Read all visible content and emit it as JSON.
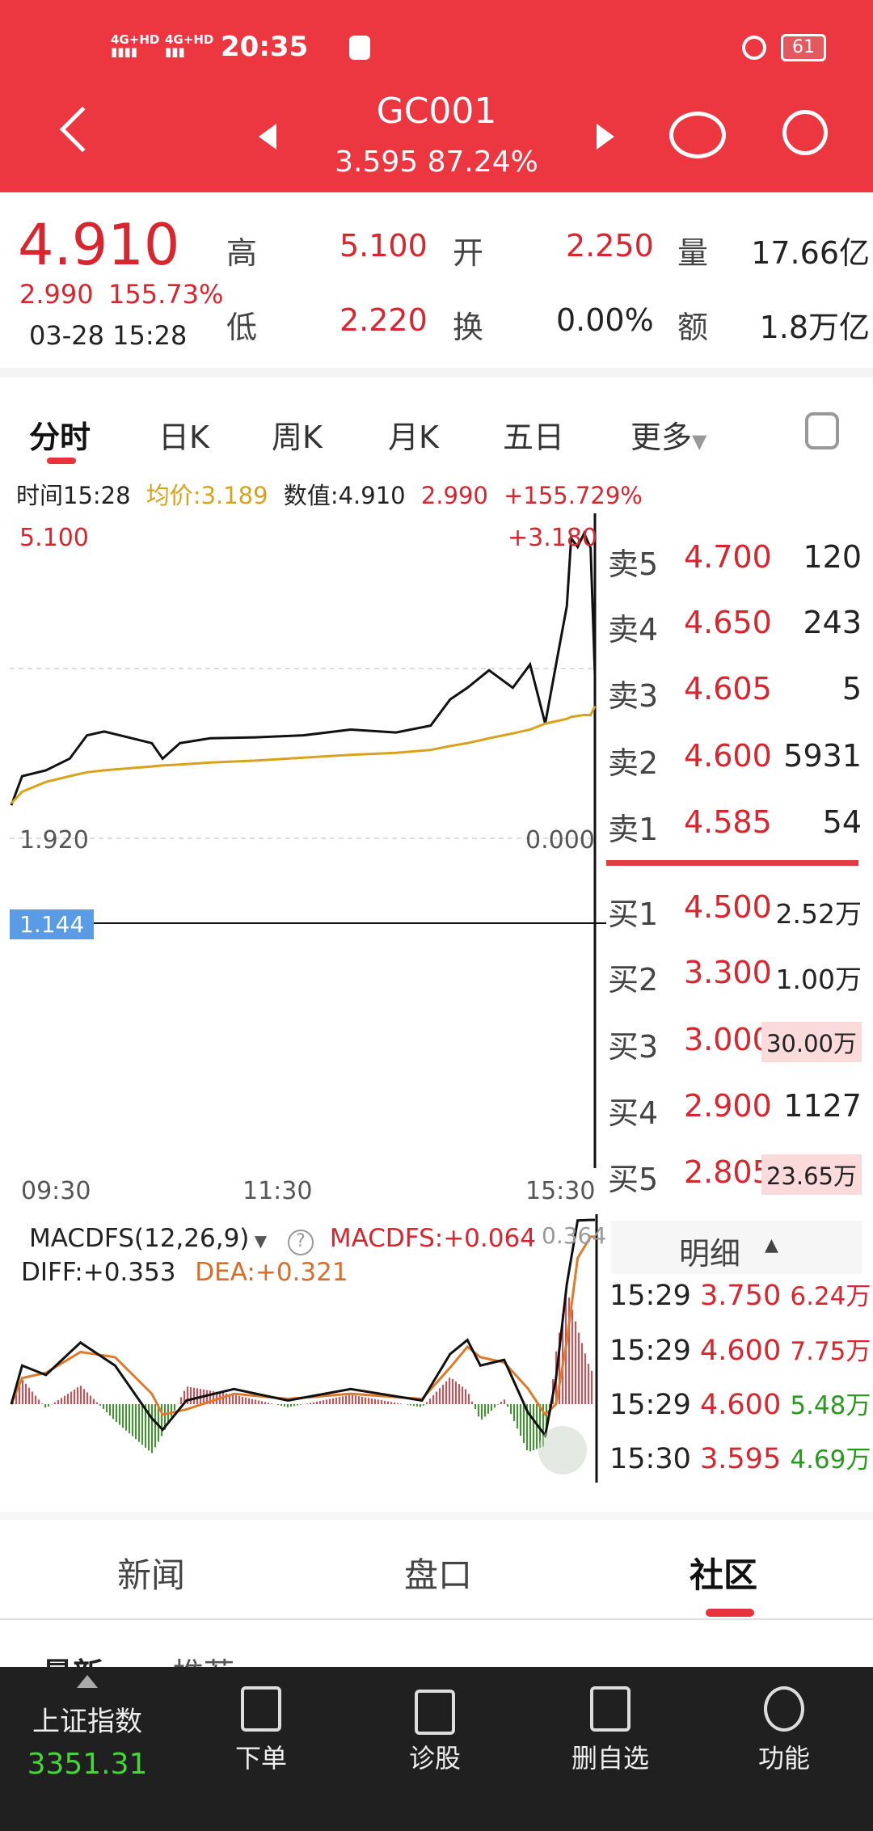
{
  "status_bar": {
    "time": "20:35",
    "network1": "4G+HD",
    "network2": "4G+HD",
    "battery": "61"
  },
  "header": {
    "title": "GC001",
    "subtitle": "3.595 87.24%",
    "back_icon": "chevron-left-icon",
    "prev_icon": "triangle-left-icon",
    "next_icon": "triangle-right-icon",
    "robot_icon": "robot-icon",
    "search_icon": "search-icon"
  },
  "quote": {
    "price": "4.910",
    "change": "2.990",
    "change_pct": "155.73%",
    "datetime": "03-28 15:28",
    "high_label": "高",
    "high": "5.100",
    "open_label": "开",
    "open": "2.250",
    "volume_label": "量",
    "volume": "17.66亿",
    "low_label": "低",
    "low": "2.220",
    "turnover_label": "换",
    "turnover": "0.00%",
    "amount_label": "额",
    "amount": "1.8万亿"
  },
  "tabs": {
    "items": [
      "分时",
      "日K",
      "周K",
      "月K",
      "五日",
      "更多"
    ],
    "active": 0,
    "settings_icon": "hexagon-settings-icon"
  },
  "info_line": {
    "time": "时间15:28",
    "avg": "均价:3.189",
    "value": "数值:4.910",
    "chg": "2.990",
    "pct": "+155.729%"
  },
  "chart_labels": {
    "top_left": "5.100",
    "top_right": "+3.180",
    "bottom_left": "1.920",
    "bottom_right": "0.000",
    "crosshair_value": "1.144",
    "x_ticks": [
      "09:30",
      "11:30",
      "15:30"
    ]
  },
  "colors": {
    "up": "#d9252e",
    "down": "#2a9a1e",
    "avg_line": "#d9a21b",
    "header": "#ec3640"
  },
  "chart_data": [
    {
      "type": "line",
      "title": "分时",
      "ylim": [
        1.92,
        5.1
      ],
      "x": [
        "09:30",
        "09:35",
        "09:46",
        "09:57",
        "10:05",
        "10:13",
        "10:24",
        "10:35",
        "10:40",
        "10:48",
        "11:02",
        "11:23",
        "13:15",
        "13:37",
        "13:58",
        "14:14",
        "14:23",
        "14:31",
        "14:41",
        "14:52",
        "15:00",
        "15:07",
        "15:13",
        "15:17",
        "15:19",
        "15:22",
        "15:25",
        "15:28",
        "15:30"
      ],
      "series": [
        {
          "name": "数值",
          "values": [
            2.26,
            2.56,
            2.62,
            2.74,
            2.98,
            3.02,
            2.96,
            2.9,
            2.74,
            2.9,
            2.95,
            2.96,
            2.98,
            3.04,
            3.01,
            3.08,
            3.35,
            3.47,
            3.65,
            3.47,
            3.71,
            3.1,
            3.83,
            4.31,
            5.01,
            4.92,
            5.06,
            4.91,
            3.595
          ]
        },
        {
          "name": "均价",
          "values": [
            2.28,
            2.4,
            2.5,
            2.56,
            2.6,
            2.62,
            2.64,
            2.66,
            2.67,
            2.68,
            2.7,
            2.72,
            2.75,
            2.78,
            2.8,
            2.83,
            2.87,
            2.9,
            2.95,
            3.0,
            3.04,
            3.1,
            3.13,
            3.15,
            3.17,
            3.18,
            3.19,
            3.189,
            3.28
          ]
        }
      ]
    },
    {
      "type": "bar",
      "title": "MACDFS(12,26,9)",
      "ylim": [
        -0.15,
        0.364
      ],
      "x": [
        "09:30",
        "09:35",
        "09:46",
        "10:02",
        "10:18",
        "10:35",
        "10:40",
        "10:51",
        "11:13",
        "13:08",
        "13:37",
        "14:10",
        "14:23",
        "14:31",
        "14:37",
        "14:48",
        "14:59",
        "15:07",
        "15:12",
        "15:17",
        "15:22",
        "15:28",
        "15:30"
      ],
      "series": [
        {
          "name": "DIFF",
          "values": [
            0,
            0.074,
            0.056,
            0.118,
            0.074,
            -0.027,
            -0.049,
            0.007,
            0.029,
            0.007,
            0.029,
            0.007,
            0.096,
            0.123,
            0.074,
            0.085,
            -0.016,
            -0.06,
            0.05,
            0.23,
            0.352,
            0.353,
            0.353
          ]
        },
        {
          "name": "DEA",
          "values": [
            0,
            0.05,
            0.06,
            0.1,
            0.09,
            0.02,
            -0.02,
            -0.01,
            0.02,
            0.01,
            0.02,
            0.01,
            0.07,
            0.11,
            0.09,
            0.08,
            0.03,
            -0.02,
            0.0,
            0.12,
            0.28,
            0.321,
            0.321
          ]
        },
        {
          "name": "MACDFS",
          "values": [
            0,
            0.048,
            -0.008,
            0.036,
            -0.032,
            -0.094,
            -0.058,
            0.034,
            0.018,
            -0.006,
            0.018,
            -0.006,
            0.052,
            0.026,
            -0.032,
            0.01,
            -0.092,
            -0.08,
            0.1,
            0.22,
            0.144,
            0.064,
            0.064
          ]
        }
      ]
    }
  ],
  "macd": {
    "indicator": "MACDFS(12,26,9)",
    "help_icon": "question-icon",
    "macdfs": "MACDFS:+0.064",
    "peak": "0.364",
    "diff": "DIFF:+0.353",
    "dea": "DEA:+0.321"
  },
  "order_book": {
    "asks": [
      {
        "label": "卖5",
        "price": "4.700",
        "vol": "120"
      },
      {
        "label": "卖4",
        "price": "4.650",
        "vol": "243"
      },
      {
        "label": "卖3",
        "price": "4.605",
        "vol": "5"
      },
      {
        "label": "卖2",
        "price": "4.600",
        "vol": "5931"
      },
      {
        "label": "卖1",
        "price": "4.585",
        "vol": "54"
      }
    ],
    "bids": [
      {
        "label": "买1",
        "price": "4.500",
        "vol": "2.52万"
      },
      {
        "label": "买2",
        "price": "3.300",
        "vol": "1.00万"
      },
      {
        "label": "买3",
        "price": "3.000",
        "vol": "30.00万"
      },
      {
        "label": "买4",
        "price": "2.900",
        "vol": "1127"
      },
      {
        "label": "买5",
        "price": "2.805",
        "vol": "23.65万"
      }
    ]
  },
  "ticks": {
    "title": "明细",
    "rows": [
      {
        "time": "15:29",
        "price": "3.750",
        "vol": "6.24万"
      },
      {
        "time": "15:29",
        "price": "4.600",
        "vol": "7.75万"
      },
      {
        "time": "15:29",
        "price": "4.600",
        "vol": "5.48万"
      },
      {
        "time": "15:30",
        "price": "3.595",
        "vol": "4.69万"
      }
    ]
  },
  "bottom_tabs": {
    "items": [
      "新闻",
      "盘口",
      "社区"
    ],
    "active": 2,
    "sub": [
      "最新",
      "推荐"
    ]
  },
  "dock": {
    "index_name": "上证指数",
    "index_value": "3351.31",
    "items": [
      "下单",
      "诊股",
      "删自选",
      "功能"
    ]
  }
}
